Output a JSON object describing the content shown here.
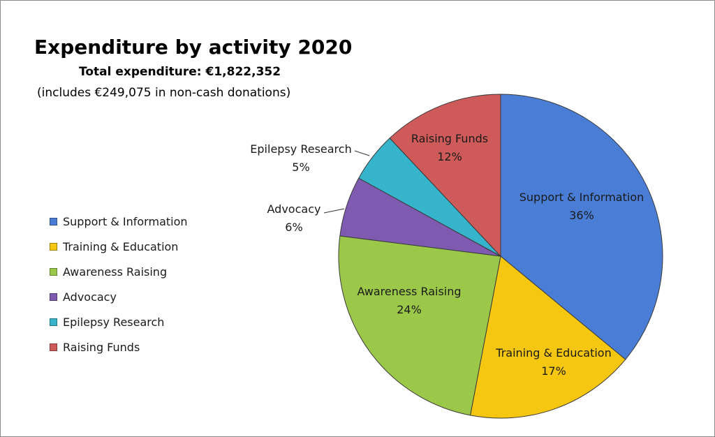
{
  "header": {
    "title": "Expenditure by activity 2020",
    "subtitle": "Total expenditure: €1,822,352",
    "note": "(includes €249,075 in non-cash donations)"
  },
  "chart_data": {
    "type": "pie",
    "title": "Expenditure by activity 2020",
    "slices": [
      {
        "name": "Support & Information",
        "value": 36,
        "label": "36%",
        "color": "#4a7ed6"
      },
      {
        "name": "Training & Education",
        "value": 17,
        "label": "17%",
        "color": "#f5c710"
      },
      {
        "name": "Awareness Raising",
        "value": 24,
        "label": "24%",
        "color": "#9cc84a"
      },
      {
        "name": "Advocacy",
        "value": 6,
        "label": "6%",
        "color": "#7e5ab0"
      },
      {
        "name": "Epilepsy Research",
        "value": 5,
        "label": "5%",
        "color": "#35b4cc"
      },
      {
        "name": "Raising Funds",
        "value": 12,
        "label": "12%",
        "color": "#cf5a5a"
      }
    ],
    "legend_position": "left"
  }
}
